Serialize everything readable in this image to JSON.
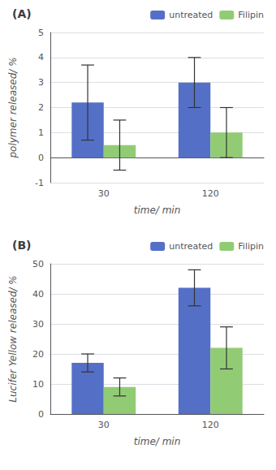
{
  "chart_data": [
    {
      "type": "bar",
      "title": "(A)",
      "xlabel": "time/ min",
      "ylabel": "polymer released/ %",
      "categories": [
        "30",
        "120"
      ],
      "series": [
        {
          "name": "untreated",
          "values": [
            2.2,
            3.0
          ],
          "errors": [
            1.5,
            1.0
          ]
        },
        {
          "name": "Filipin",
          "values": [
            0.5,
            1.0
          ],
          "errors": [
            1.0,
            1.0
          ]
        }
      ],
      "ylim": [
        -1,
        5
      ],
      "yticks": [
        -1,
        0,
        1,
        2,
        3,
        4,
        5
      ],
      "legend": "upper right"
    },
    {
      "type": "bar",
      "title": "(B)",
      "xlabel": "time/ min",
      "ylabel": "Lucifer Yellow released/ %",
      "categories": [
        "30",
        "120"
      ],
      "series": [
        {
          "name": "untreated",
          "values": [
            17,
            42
          ],
          "errors": [
            3,
            6
          ]
        },
        {
          "name": "Filipin",
          "values": [
            9,
            22
          ],
          "errors": [
            3,
            7
          ]
        }
      ],
      "ylim": [
        0,
        50
      ],
      "yticks": [
        0,
        10,
        20,
        30,
        40,
        50
      ],
      "legend": "upper right"
    }
  ]
}
